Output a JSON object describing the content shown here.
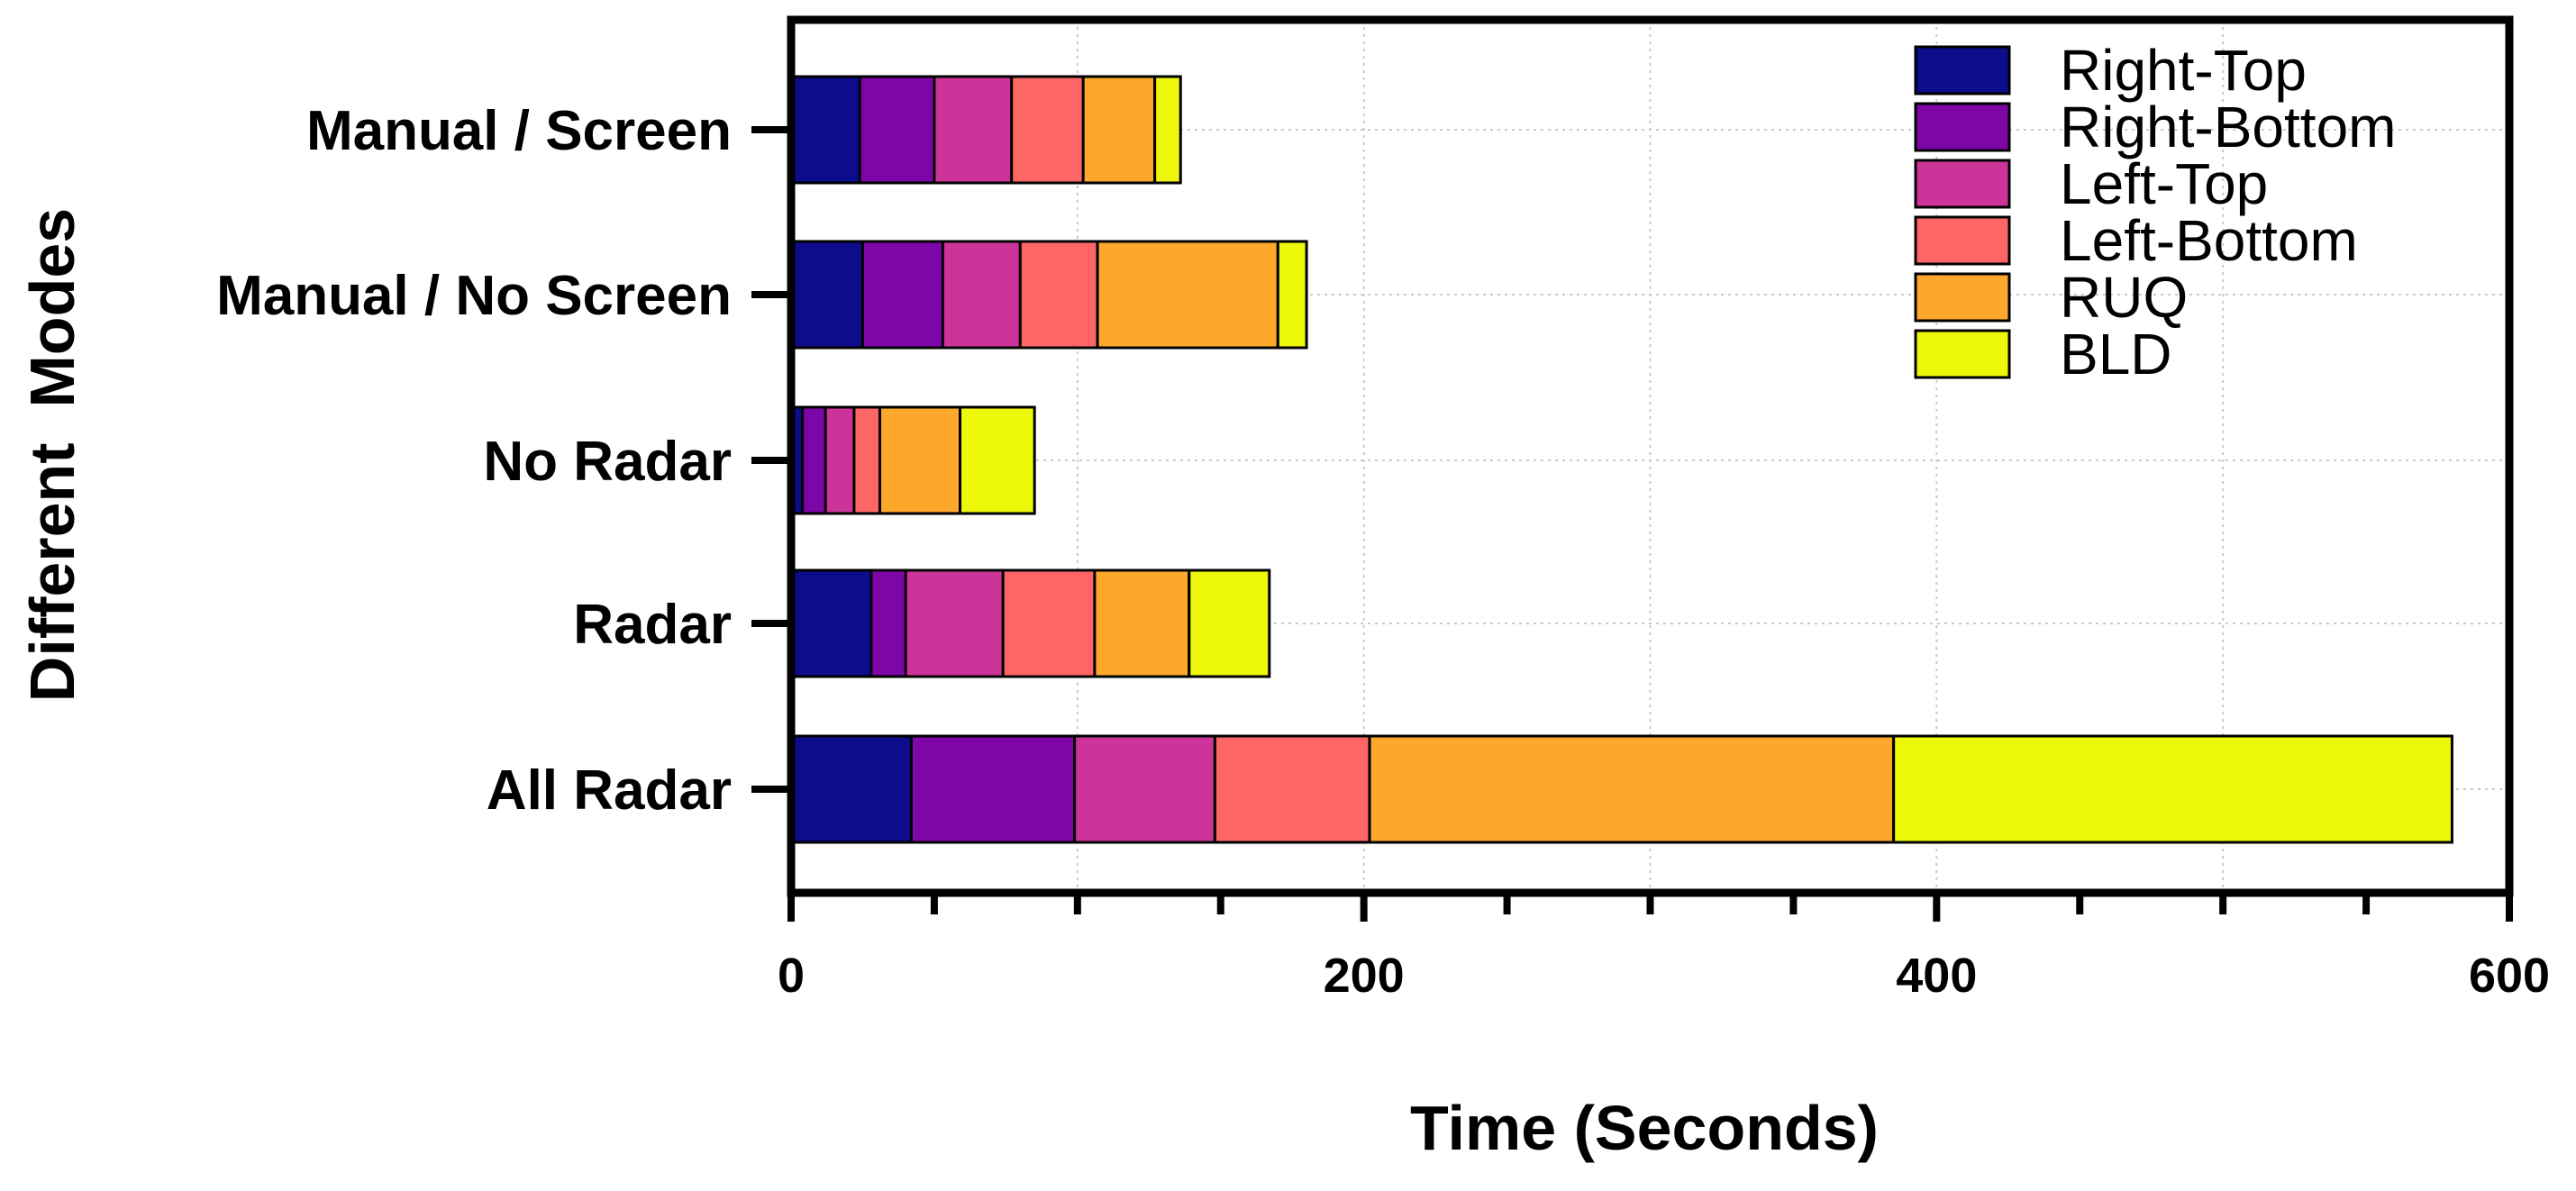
{
  "chart_data": {
    "type": "bar",
    "orientation": "horizontal",
    "stacked": true,
    "xlabel": "Time (Seconds)",
    "ylabel": "Different  Modes",
    "xlim": [
      0,
      600
    ],
    "x_ticks": [
      0,
      200,
      400,
      600
    ],
    "x_tick_labels": [
      "0",
      "200",
      "400",
      "600"
    ],
    "x_minor_tick_step": 50,
    "grid": "dotted vertical gridlines at every 100 and horizontal gridlines at category centers",
    "legend_position": "top-right",
    "categories": [
      "Manual / Screen",
      "Manual / No Screen",
      "No Radar",
      "Radar",
      "All Radar"
    ],
    "series": [
      {
        "name": "Right-Top",
        "color": "#0d0c8c",
        "values": [
          24,
          25,
          4,
          28,
          42
        ]
      },
      {
        "name": "Right-Bottom",
        "color": "#7e06a8",
        "values": [
          26,
          28,
          8,
          12,
          57
        ]
      },
      {
        "name": "Left-Top",
        "color": "#cc3499",
        "values": [
          27,
          27,
          10,
          34,
          49
        ]
      },
      {
        "name": "Left-Bottom",
        "color": "#fe6666",
        "values": [
          25,
          27,
          9,
          32,
          54
        ]
      },
      {
        "name": "RUQ",
        "color": "#fda72b",
        "values": [
          25,
          63,
          28,
          33,
          183
        ]
      },
      {
        "name": "BLD",
        "color": "#ecf70a",
        "values": [
          9,
          10,
          26,
          28,
          195
        ]
      }
    ]
  }
}
